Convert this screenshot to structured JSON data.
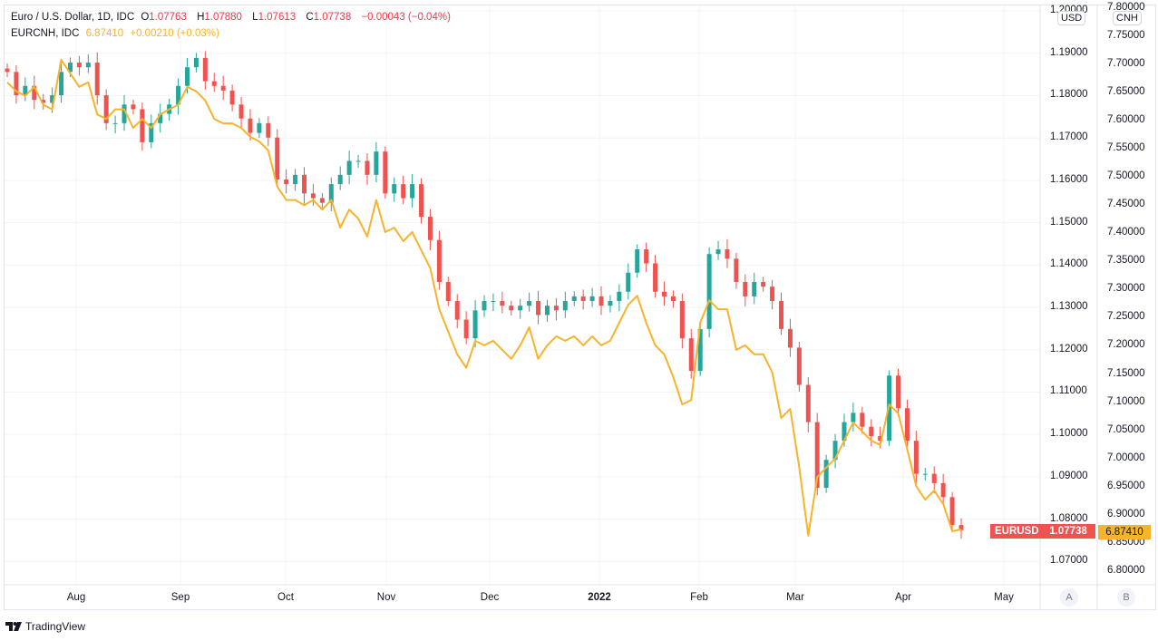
{
  "legend": {
    "main_title": "Euro / U.S. Dollar, 1D, IDC",
    "o_label": "O",
    "open": "1.07763",
    "h_label": "H",
    "high": "1.07880",
    "l_label": "L",
    "low": "1.07613",
    "c_label": "C",
    "close": "1.07738",
    "change": "−0.00043 (−0.04%)",
    "compare_title": "EURCNH, IDC",
    "compare_value": "6.87410",
    "compare_change": "+0.00210 (+0.03%)"
  },
  "axes": {
    "left_unit": "USD",
    "right_unit": "CNH",
    "left_scale_button": "A",
    "right_scale_button": "B"
  },
  "price_tags": {
    "symbol": "EURUSD",
    "eurusd_last": "1.07738",
    "eurcnh_last": "6.87410"
  },
  "branding": "TradingView",
  "colors": {
    "up": "#26a69a",
    "down": "#ef5350",
    "compare": "#f7b32b",
    "grid": "#f0f3fa"
  },
  "chart_data": {
    "type": "candlestick+line",
    "title": "Euro / U.S. Dollar, 1D, IDC",
    "x_ticks": [
      "Aug",
      "Sep",
      "Oct",
      "Nov",
      "Dec",
      "2022",
      "Feb",
      "Mar",
      "Apr",
      "May"
    ],
    "left_axis": {
      "unit": "USD",
      "ticks": [
        "1.20000",
        "1.19000",
        "1.18000",
        "1.17000",
        "1.16000",
        "1.15000",
        "1.14000",
        "1.13000",
        "1.12000",
        "1.11000",
        "1.10000",
        "1.09000",
        "1.08000",
        "1.07000"
      ],
      "range": [
        1.0645,
        1.2013
      ]
    },
    "right_axis": {
      "unit": "CNH",
      "ticks": [
        "7.80000",
        "7.75000",
        "7.70000",
        "7.65000",
        "7.60000",
        "7.55000",
        "7.50000",
        "7.45000",
        "7.40000",
        "7.35000",
        "7.30000",
        "7.25000",
        "7.20000",
        "7.15000",
        "7.10000",
        "7.05000",
        "7.00000",
        "6.95000",
        "6.90000",
        "6.85000",
        "6.80000"
      ],
      "range": [
        6.7758,
        7.8045
      ]
    },
    "eurusd_closes": [
      1.1856,
      1.1801,
      1.1823,
      1.179,
      1.1783,
      1.1801,
      1.1856,
      1.1878,
      1.1867,
      1.1878,
      1.1801,
      1.1735,
      1.1735,
      1.1779,
      1.1768,
      1.169,
      1.1735,
      1.1757,
      1.1779,
      1.1823,
      1.1867,
      1.1889,
      1.1834,
      1.1823,
      1.1812,
      1.1779,
      1.1746,
      1.1712,
      1.1735,
      1.1701,
      1.1602,
      1.1591,
      1.1613,
      1.1569,
      1.1558,
      1.1547,
      1.1591,
      1.1613,
      1.1646,
      1.1646,
      1.1613,
      1.1668,
      1.1569,
      1.1591,
      1.1558,
      1.1591,
      1.1514,
      1.1459,
      1.136,
      1.1315,
      1.1271,
      1.1227,
      1.1293,
      1.1315,
      1.1315,
      1.1304,
      1.1293,
      1.1304,
      1.1315,
      1.1282,
      1.1304,
      1.1293,
      1.1315,
      1.1326,
      1.1315,
      1.1326,
      1.1304,
      1.1315,
      1.1337,
      1.1382,
      1.1437,
      1.1404,
      1.1337,
      1.1326,
      1.1315,
      1.1227,
      1.115,
      1.1249,
      1.1426,
      1.1437,
      1.1415,
      1.136,
      1.1326,
      1.136,
      1.1349,
      1.1315,
      1.1249,
      1.1205,
      1.1117,
      1.1029,
      1.0874,
      1.094,
      1.0985,
      1.1029,
      1.1051,
      1.1018,
      1.0996,
      1.0985,
      1.1139,
      1.1062,
      1.0985,
      1.0907,
      1.0907,
      1.0885,
      1.0852,
      1.0786,
      1.0774
    ],
    "eurcnh": [
      7.668,
      7.652,
      7.644,
      7.66,
      7.628,
      7.62,
      7.708,
      7.684,
      7.66,
      7.668,
      7.611,
      7.603,
      7.62,
      7.62,
      7.587,
      7.603,
      7.587,
      7.611,
      7.62,
      7.628,
      7.66,
      7.652,
      7.636,
      7.603,
      7.595,
      7.595,
      7.587,
      7.571,
      7.563,
      7.547,
      7.483,
      7.459,
      7.459,
      7.45,
      7.459,
      7.442,
      7.459,
      7.41,
      7.442,
      7.426,
      7.394,
      7.459,
      7.402,
      7.41,
      7.386,
      7.402,
      7.37,
      7.338,
      7.265,
      7.225,
      7.185,
      7.161,
      7.209,
      7.201,
      7.209,
      7.193,
      7.177,
      7.201,
      7.233,
      7.177,
      7.201,
      7.217,
      7.209,
      7.217,
      7.201,
      7.217,
      7.201,
      7.209,
      7.241,
      7.273,
      7.289,
      7.241,
      7.201,
      7.185,
      7.145,
      7.096,
      7.104,
      7.241,
      7.281,
      7.265,
      7.265,
      7.193,
      7.201,
      7.185,
      7.185,
      7.153,
      7.072,
      7.088,
      6.984,
      6.863,
      6.967,
      6.984,
      7.0,
      7.032,
      7.064,
      7.048,
      7.032,
      7.024,
      7.096,
      7.08,
      7.016,
      6.951,
      6.927,
      6.943,
      6.919,
      6.871,
      6.874
    ]
  }
}
